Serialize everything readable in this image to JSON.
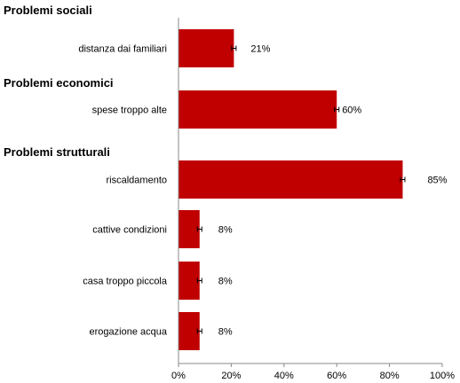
{
  "chart_data": {
    "type": "bar",
    "orientation": "horizontal",
    "x_ticks": [
      "0%",
      "20%",
      "40%",
      "60%",
      "80%",
      "100%"
    ],
    "xlim": [
      0,
      100
    ],
    "groups": [
      {
        "name": "Problemi sociali",
        "items": [
          {
            "category": "distanza dai familiari",
            "value": 21,
            "label": "21%"
          }
        ]
      },
      {
        "name": "Problemi economici",
        "items": [
          {
            "category": "spese troppo alte",
            "value": 60,
            "label": "60%"
          }
        ]
      },
      {
        "name": "Problemi strutturali",
        "items": [
          {
            "category": "riscaldamento",
            "value": 85,
            "label": "85%"
          },
          {
            "category": "cattive condizioni",
            "value": 8,
            "label": "8%"
          },
          {
            "category": "casa troppo piccola",
            "value": 8,
            "label": "8%"
          },
          {
            "category": "erogazione acqua",
            "value": 8,
            "label": "8%"
          }
        ]
      }
    ],
    "bar_color": "#c00000",
    "error_bars": true,
    "grid": false,
    "legend": "none"
  }
}
